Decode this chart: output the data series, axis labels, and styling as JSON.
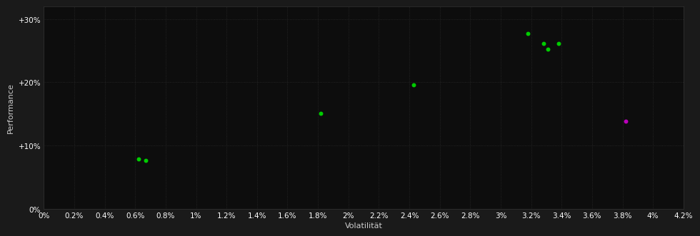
{
  "background_color": "#1a1a1a",
  "plot_bg_color": "#0d0d0d",
  "grid_color": "#2a2a2a",
  "text_color": "#ffffff",
  "xlabel": "Volatilität",
  "ylabel": "Performance",
  "xlim": [
    0.0,
    0.042
  ],
  "ylim": [
    0.0,
    0.32
  ],
  "xticks": [
    0.0,
    0.002,
    0.004,
    0.006,
    0.008,
    0.01,
    0.012,
    0.014,
    0.016,
    0.018,
    0.02,
    0.022,
    0.024,
    0.026,
    0.028,
    0.03,
    0.032,
    0.034,
    0.036,
    0.038,
    0.04,
    0.042
  ],
  "xtick_labels": [
    "0%",
    "0.2%",
    "0.4%",
    "0.6%",
    "0.8%",
    "1%",
    "1.2%",
    "1.4%",
    "1.6%",
    "1.8%",
    "2%",
    "2.2%",
    "2.4%",
    "2.6%",
    "2.8%",
    "3%",
    "3.2%",
    "3.4%",
    "3.6%",
    "3.8%",
    "4%",
    "4.2%"
  ],
  "yticks": [
    0.0,
    0.1,
    0.2,
    0.3
  ],
  "ytick_labels": [
    "0%",
    "+10%",
    "+20%",
    "+30%"
  ],
  "green_points": [
    [
      0.0062,
      0.079
    ],
    [
      0.0067,
      0.076
    ],
    [
      0.0182,
      0.151
    ],
    [
      0.0243,
      0.196
    ],
    [
      0.0318,
      0.277
    ],
    [
      0.0328,
      0.261
    ],
    [
      0.0338,
      0.262
    ],
    [
      0.0331,
      0.253
    ]
  ],
  "magenta_points": [
    [
      0.0382,
      0.138
    ]
  ],
  "green_color": "#00cc00",
  "magenta_color": "#bb00bb",
  "point_size": 18,
  "grid_linestyle": ":",
  "grid_linewidth": 0.6,
  "grid_alpha": 1.0,
  "tick_fontsize": 7.5,
  "axis_label_fontsize": 8,
  "xlabel_color": "#cccccc",
  "ylabel_color": "#cccccc"
}
